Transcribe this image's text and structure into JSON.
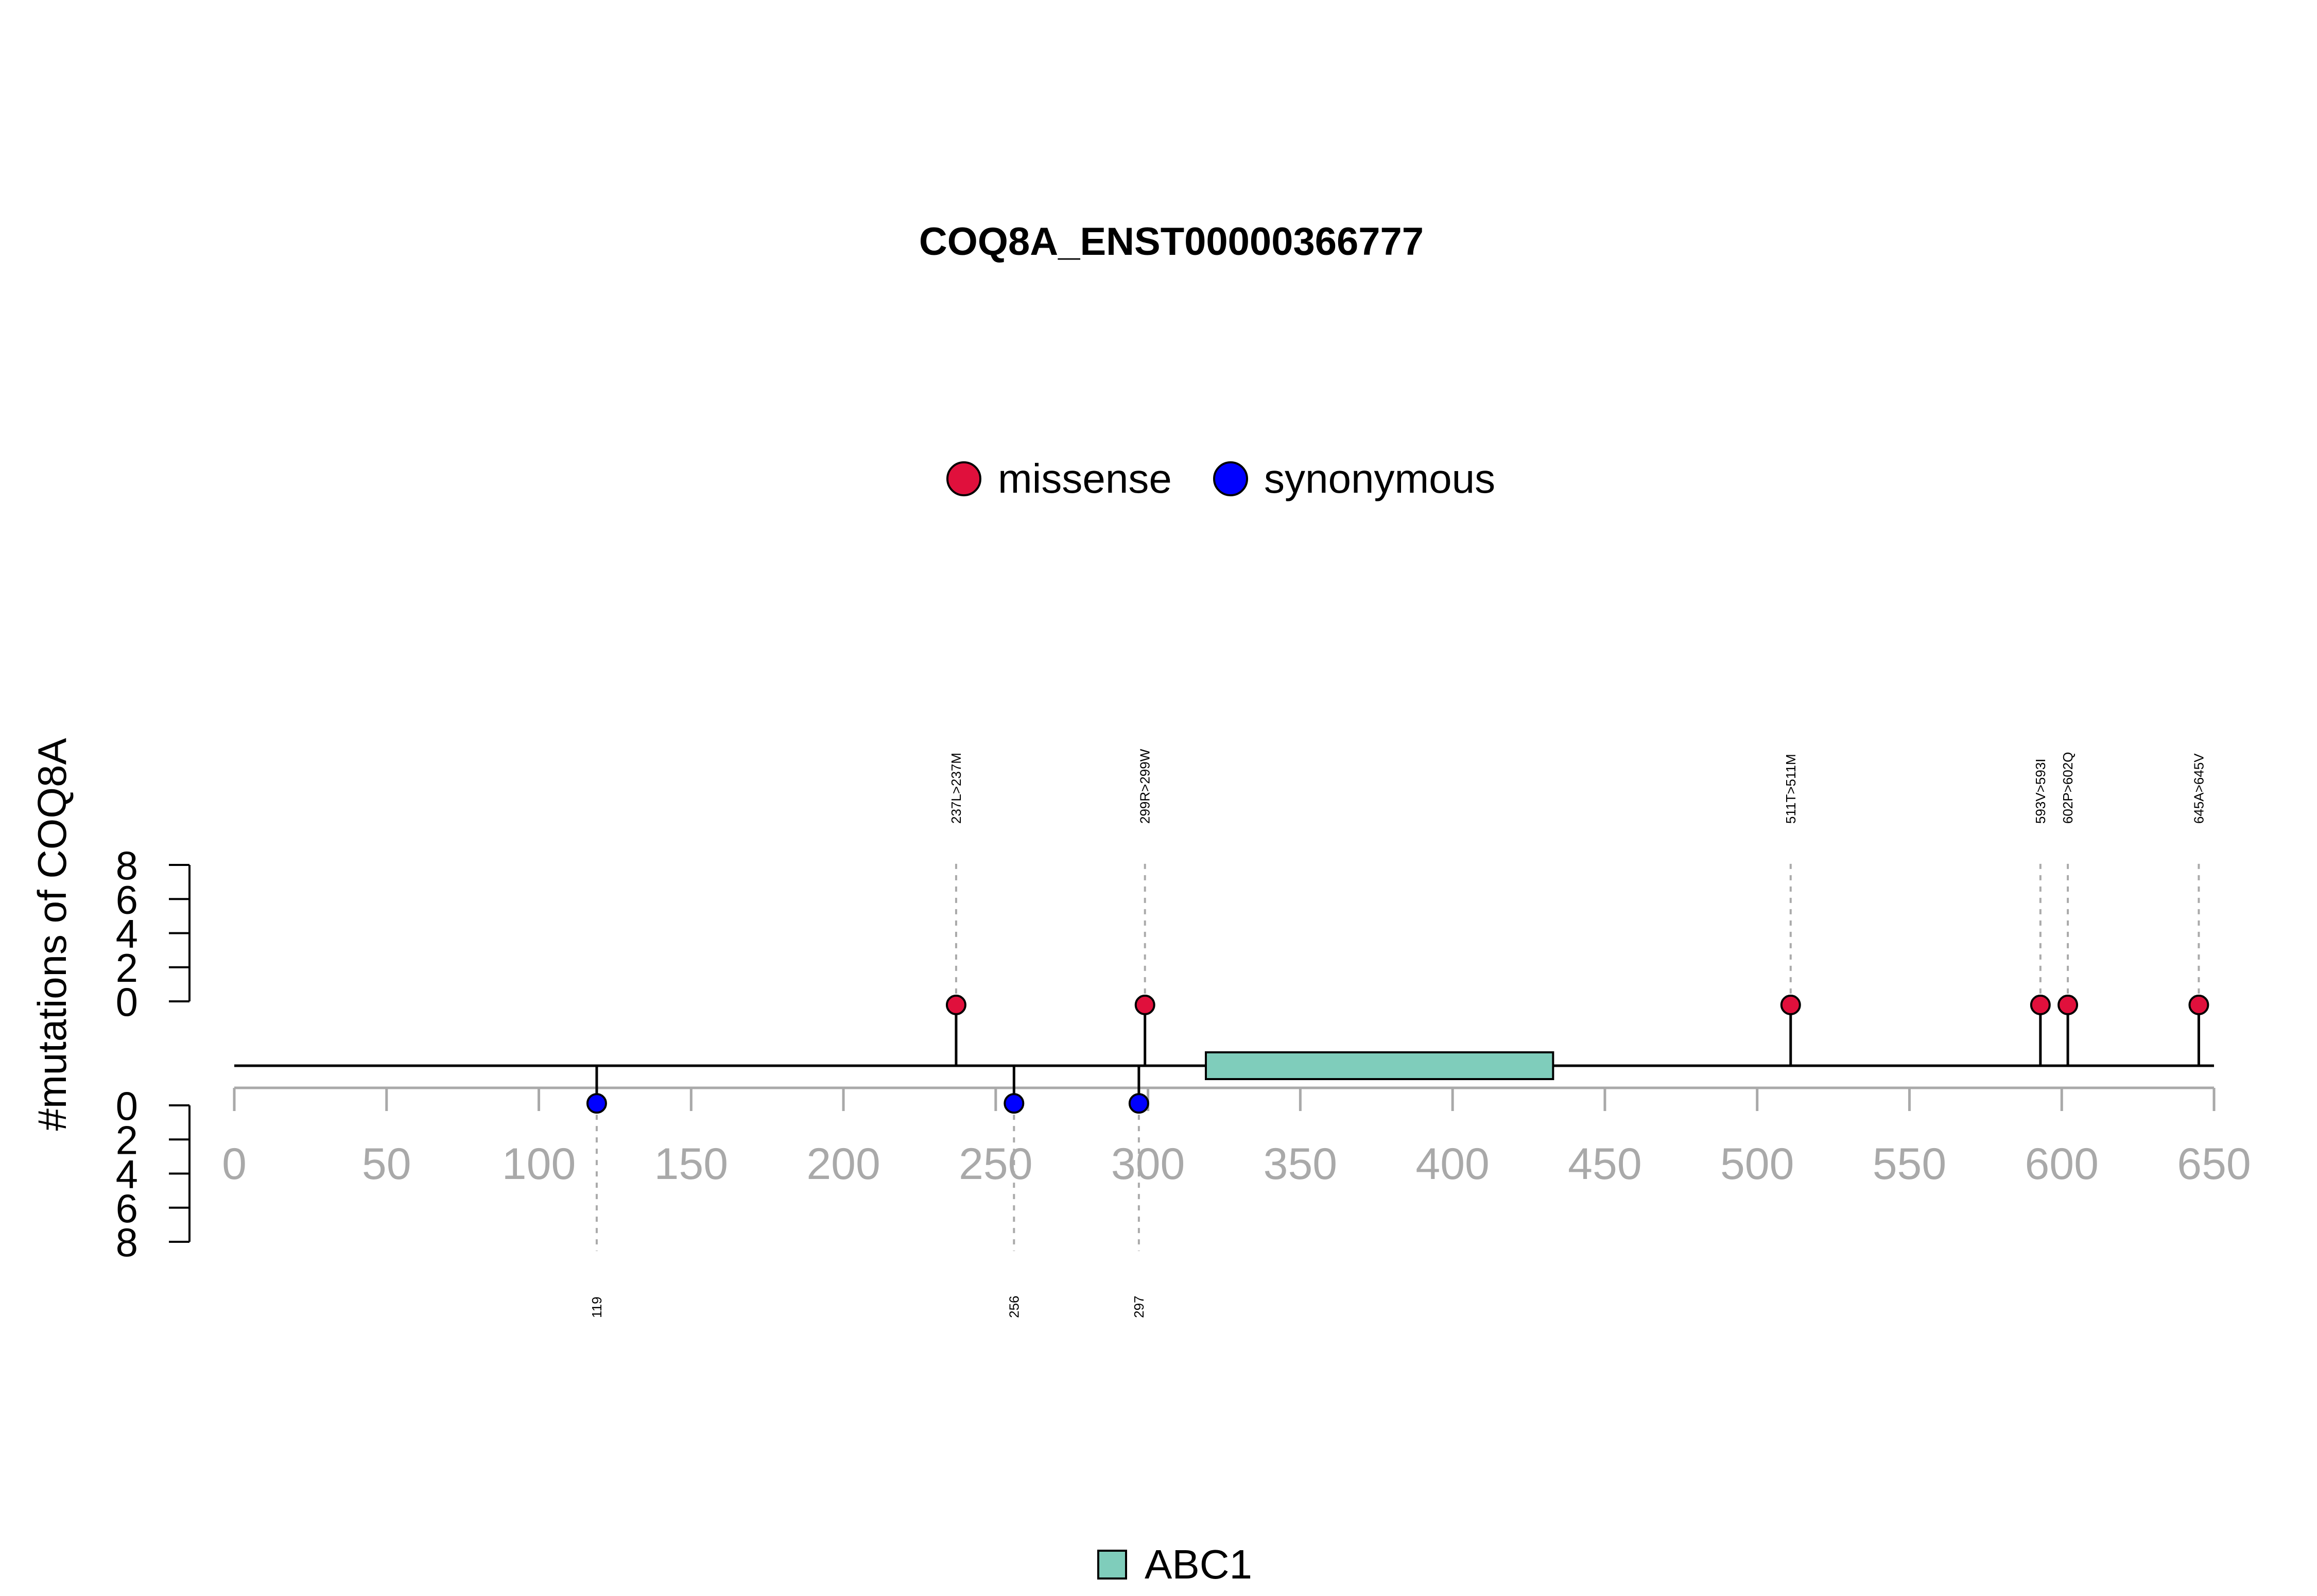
{
  "chart_data": {
    "type": "lollipop",
    "title": "COQ8A_ENST00000366777",
    "ylabel": "#mutations of COQ8A",
    "xlim": [
      0,
      650
    ],
    "x_ticks": [
      0,
      50,
      100,
      150,
      200,
      250,
      300,
      350,
      400,
      450,
      500,
      550,
      600,
      650
    ],
    "y_ticks_top": [
      0,
      2,
      4,
      6,
      8
    ],
    "y_ticks_bottom": [
      0,
      2,
      4,
      6,
      8
    ],
    "ylim": [
      0,
      8
    ],
    "legend": [
      {
        "name": "missense",
        "color": "#e0103c"
      },
      {
        "name": "synonymous",
        "color": "#0000ff"
      }
    ],
    "mutations_top": [
      {
        "position": 237,
        "label": "237L>237M",
        "type": "missense",
        "count": 1
      },
      {
        "position": 299,
        "label": "299R>299W",
        "type": "missense",
        "count": 1
      },
      {
        "position": 511,
        "label": "511T>511M",
        "type": "missense",
        "count": 1
      },
      {
        "position": 593,
        "label": "593V>593I",
        "type": "missense",
        "count": 1
      },
      {
        "position": 602,
        "label": "602P>602Q",
        "type": "missense",
        "count": 1
      },
      {
        "position": 645,
        "label": "645A>645V",
        "type": "missense",
        "count": 1
      }
    ],
    "mutations_bottom": [
      {
        "position": 119,
        "label": "119",
        "type": "synonymous",
        "count": 1
      },
      {
        "position": 256,
        "label": "256",
        "type": "synonymous",
        "count": 1
      },
      {
        "position": 297,
        "label": "297",
        "type": "synonymous",
        "count": 1
      }
    ],
    "domains": [
      {
        "name": "ABC1",
        "start": 319,
        "end": 433,
        "color": "#7fcdbb"
      }
    ]
  }
}
